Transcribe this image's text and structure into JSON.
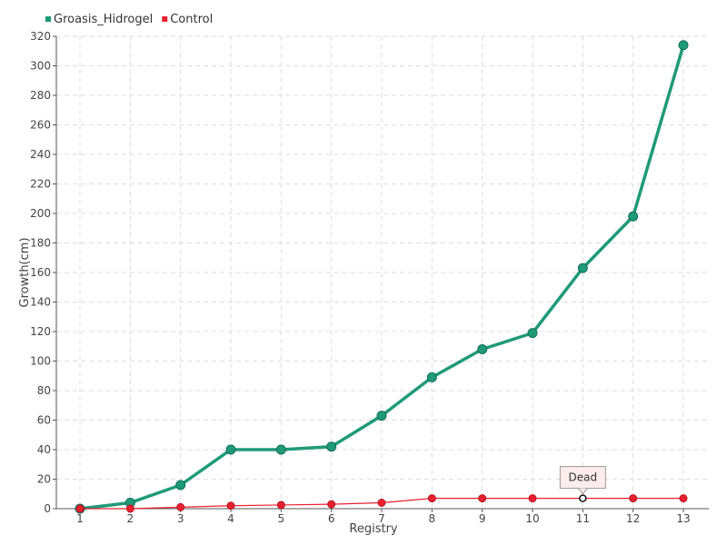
{
  "chart_data": {
    "type": "line",
    "title": "",
    "xlabel": "Registry",
    "ylabel": "Growth(cm)",
    "categories": [
      "1",
      "2",
      "3",
      "4",
      "5",
      "6",
      "7",
      "8",
      "9",
      "10",
      "11",
      "12",
      "13"
    ],
    "ylim": [
      0,
      320
    ],
    "yticks": [
      0,
      20,
      40,
      60,
      80,
      100,
      120,
      140,
      160,
      180,
      200,
      220,
      240,
      260,
      280,
      300,
      320
    ],
    "grid": true,
    "legend_position": "top-left",
    "series": [
      {
        "name": "Groasis_Hidrogel",
        "color": "#1f9a78",
        "values": [
          0,
          4,
          16,
          40,
          40,
          42,
          63,
          89,
          108,
          119,
          163,
          198,
          314
        ]
      },
      {
        "name": "Control",
        "color": "#e8202e",
        "values": [
          0,
          0,
          1,
          2,
          2.5,
          3,
          4,
          7,
          7,
          7,
          7,
          7,
          7
        ]
      }
    ],
    "annotations": [
      {
        "text": "Dead",
        "series": "Control",
        "category": "11"
      }
    ]
  }
}
